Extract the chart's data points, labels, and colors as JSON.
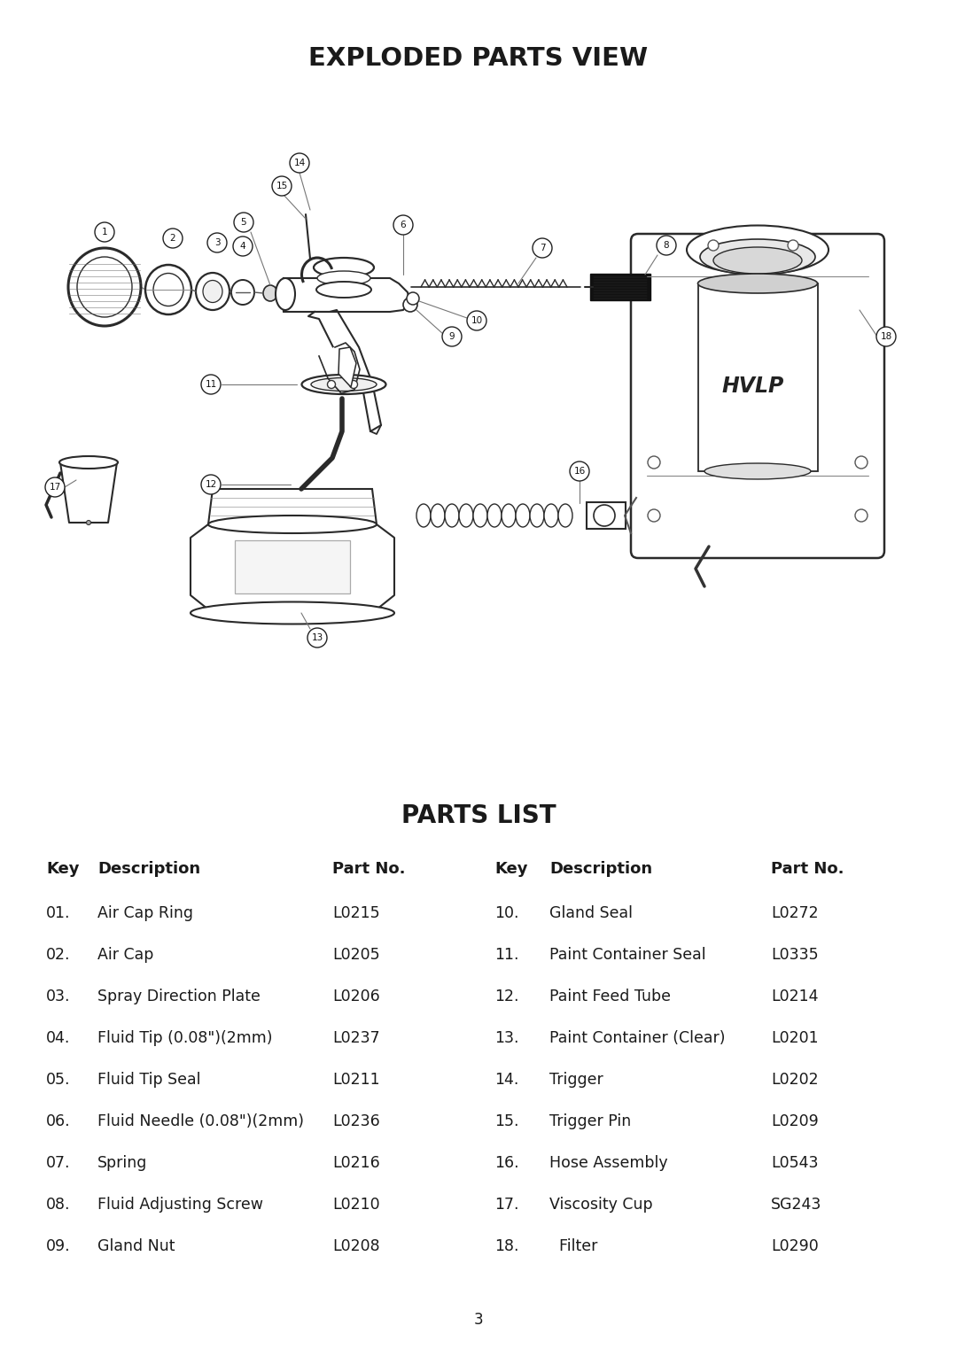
{
  "title_exploded": "EXPLODED PARTS VIEW",
  "title_parts": "PARTS LIST",
  "parts_left": [
    [
      "01.",
      "Air Cap Ring",
      "L0215"
    ],
    [
      "02.",
      "Air Cap",
      "L0205"
    ],
    [
      "03.",
      "Spray Direction Plate",
      "L0206"
    ],
    [
      "04.",
      "Fluid Tip (0.08\")(2mm)",
      "L0237"
    ],
    [
      "05.",
      "Fluid Tip Seal",
      "L0211"
    ],
    [
      "06.",
      "Fluid Needle (0.08\")(2mm)",
      "L0236"
    ],
    [
      "07.",
      "Spring",
      "L0216"
    ],
    [
      "08.",
      "Fluid Adjusting Screw",
      "L0210"
    ],
    [
      "09.",
      "Gland Nut",
      "L0208"
    ]
  ],
  "parts_right": [
    [
      "10.",
      "Gland Seal",
      "L0272"
    ],
    [
      "11.",
      "Paint Container Seal",
      "L0335"
    ],
    [
      "12.",
      "Paint Feed Tube",
      "L0214"
    ],
    [
      "13.",
      "Paint Container (Clear)",
      "L0201"
    ],
    [
      "14.",
      "Trigger",
      "L0202"
    ],
    [
      "15.",
      "Trigger Pin",
      "L0209"
    ],
    [
      "16.",
      "Hose Assembly",
      "L0543"
    ],
    [
      "17.",
      "Viscosity Cup",
      "SG243"
    ],
    [
      "18.",
      "  Filter",
      "L0290"
    ]
  ],
  "page_number": "3",
  "bg_color": "#ffffff",
  "text_color": "#1a1a1a"
}
